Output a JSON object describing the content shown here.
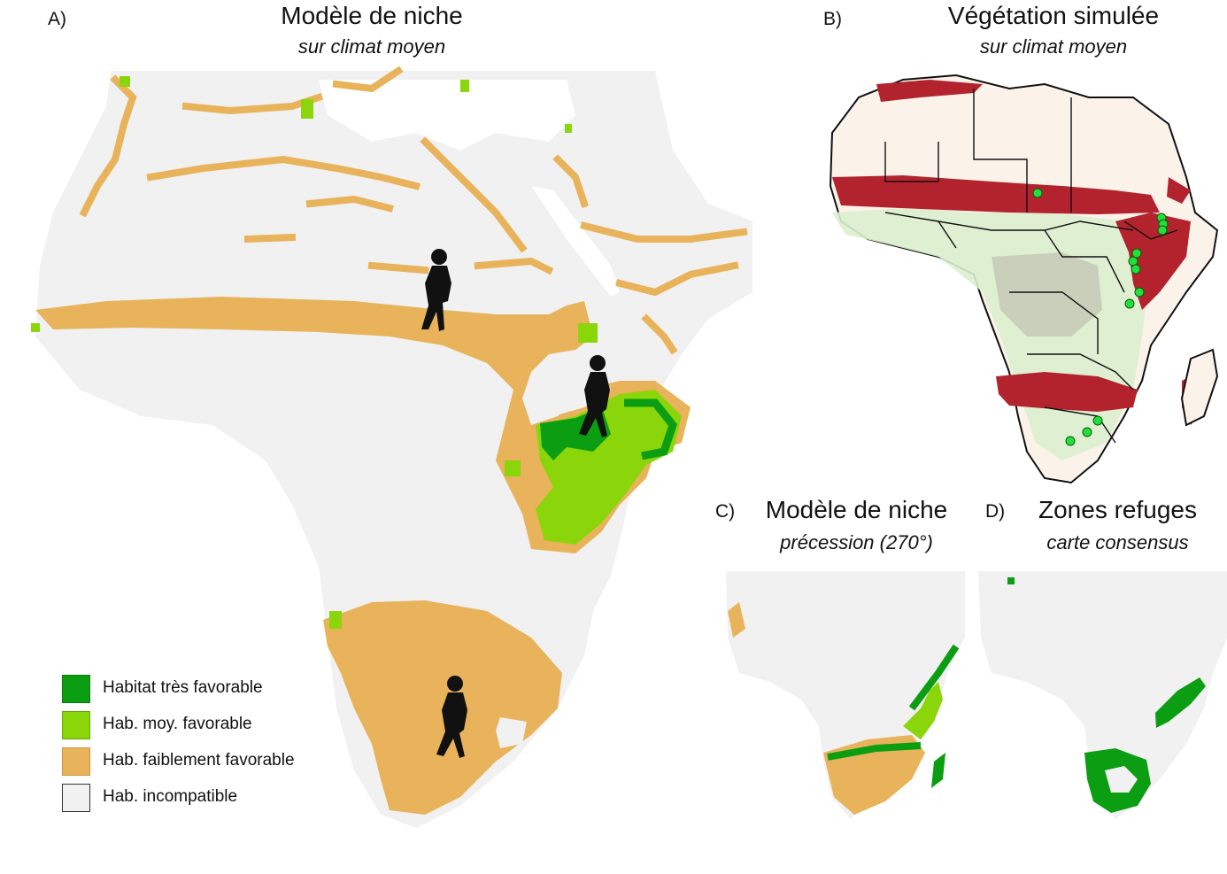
{
  "colors": {
    "very_favorable": "#0b9e12",
    "moderately_favorable": "#8ad60a",
    "weakly_favorable": "#e8b35a",
    "incompatible": "#f1f1f1",
    "vegetation_red": "#b3232e",
    "sites": "#22e03a"
  },
  "panels": {
    "a": {
      "label": "A)",
      "title": "Modèle de niche",
      "subtitle": "sur climat moyen"
    },
    "b": {
      "label": "B)",
      "title": "Végétation simulée",
      "subtitle": "sur climat moyen"
    },
    "c": {
      "label": "C)",
      "title": "Modèle de niche",
      "subtitle": "précession (270°)"
    },
    "d": {
      "label": "D)",
      "title": "Zones refuges",
      "subtitle": "carte consensus"
    }
  },
  "legend": {
    "items": [
      {
        "label": "Habitat très favorable",
        "color": "#0b9e12"
      },
      {
        "label": "Hab. moy. favorable",
        "color": "#8ad60a"
      },
      {
        "label": "Hab. faiblement favorable",
        "color": "#e8b35a"
      },
      {
        "label": "Hab. incompatible",
        "color": "#f1f1f1"
      }
    ]
  }
}
